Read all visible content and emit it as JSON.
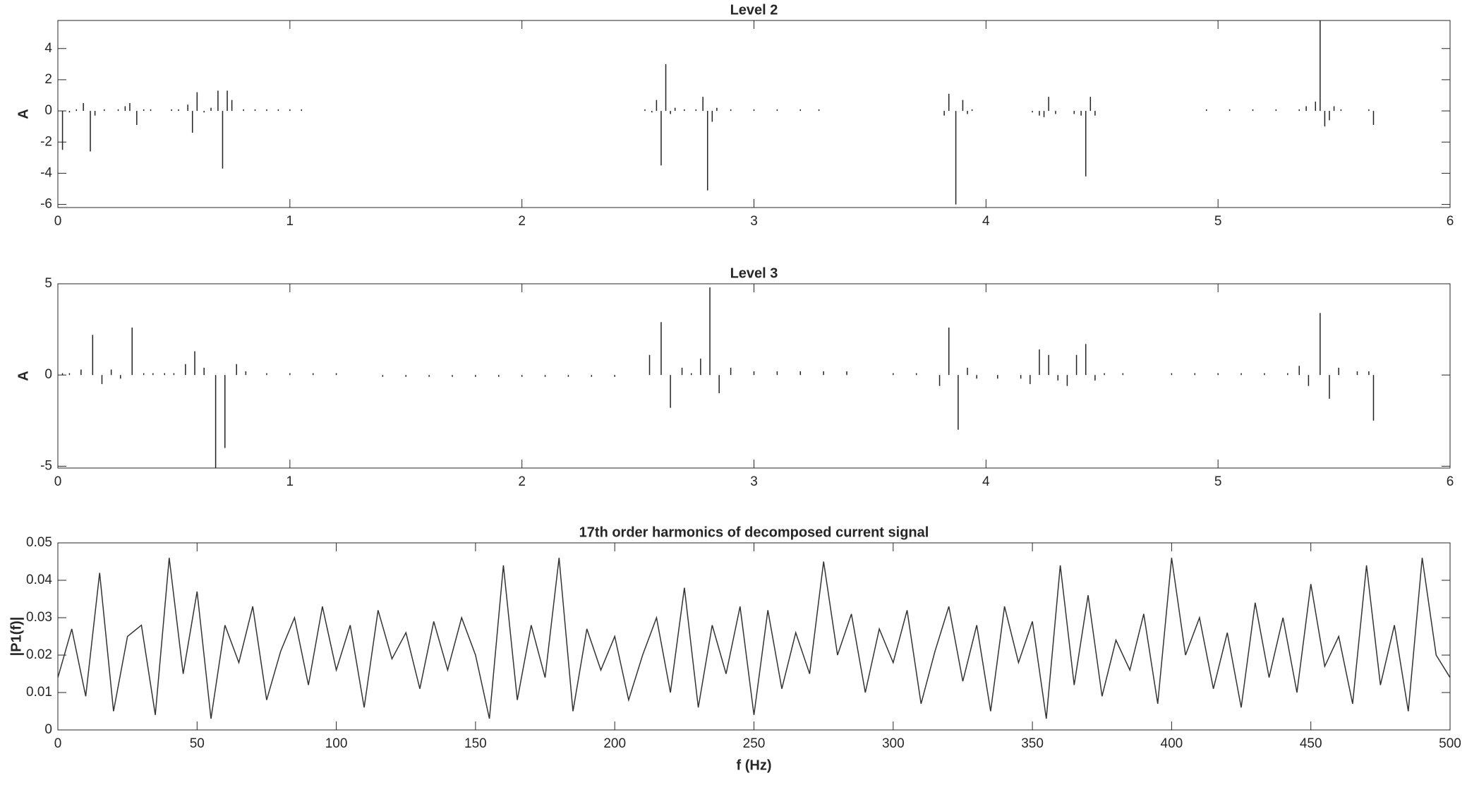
{
  "chart_data": [
    {
      "type": "stem",
      "title": "Level 2",
      "ylabel": "A",
      "color": "#222222",
      "x": [
        0.02,
        0.05,
        0.08,
        0.11,
        0.14,
        0.16,
        0.2,
        0.26,
        0.29,
        0.31,
        0.34,
        0.37,
        0.4,
        0.49,
        0.52,
        0.56,
        0.58,
        0.6,
        0.63,
        0.66,
        0.69,
        0.71,
        0.73,
        0.75,
        0.8,
        0.85,
        0.9,
        0.95,
        1.0,
        1.05,
        2.53,
        2.56,
        2.58,
        2.6,
        2.62,
        2.64,
        2.66,
        2.7,
        2.75,
        2.78,
        2.8,
        2.82,
        2.84,
        2.9,
        3.0,
        3.1,
        3.2,
        3.28,
        3.82,
        3.84,
        3.87,
        3.9,
        3.92,
        3.94,
        4.2,
        4.23,
        4.25,
        4.27,
        4.3,
        4.38,
        4.41,
        4.43,
        4.45,
        4.47,
        4.95,
        5.05,
        5.15,
        5.25,
        5.35,
        5.38,
        5.42,
        5.44,
        5.46,
        5.48,
        5.5,
        5.53,
        5.65,
        5.67
      ],
      "values": [
        -2.5,
        -0.1,
        0.1,
        0.5,
        -2.6,
        -0.3,
        0.1,
        0.1,
        0.3,
        0.5,
        -0.9,
        0.1,
        0.1,
        0.1,
        0.1,
        0.4,
        -1.4,
        1.2,
        -0.1,
        0.2,
        1.3,
        -3.7,
        1.3,
        0.7,
        0.1,
        0.1,
        0.1,
        0.1,
        0.1,
        0.1,
        0.1,
        -0.1,
        0.7,
        -3.5,
        3.0,
        -0.2,
        0.2,
        0.1,
        0.1,
        0.9,
        -5.1,
        -0.7,
        0.2,
        0.1,
        0.1,
        0.1,
        0.1,
        0.1,
        -0.3,
        1.1,
        -6.0,
        0.7,
        -0.2,
        0.1,
        -0.1,
        -0.3,
        -0.4,
        0.9,
        -0.2,
        -0.2,
        -0.3,
        -4.2,
        0.9,
        -0.3,
        0.1,
        0.1,
        0.1,
        0.1,
        0.1,
        0.3,
        0.6,
        5.8,
        -1.0,
        -0.6,
        0.3,
        0.1,
        0.1,
        -0.9
      ],
      "xlim": [
        0,
        6
      ],
      "xticks": [
        0,
        1,
        2,
        3,
        4,
        5,
        6
      ],
      "ylim": [
        -6.2,
        5.8
      ],
      "yticks": [
        -6,
        -4,
        -2,
        0,
        2,
        4
      ]
    },
    {
      "type": "stem",
      "title": "Level 3",
      "ylabel": "A",
      "color": "#222222",
      "x": [
        0.02,
        0.05,
        0.1,
        0.15,
        0.19,
        0.23,
        0.27,
        0.32,
        0.37,
        0.41,
        0.46,
        0.5,
        0.55,
        0.59,
        0.63,
        0.68,
        0.72,
        0.77,
        0.81,
        0.9,
        1.0,
        1.1,
        1.2,
        1.4,
        1.5,
        1.6,
        1.7,
        1.8,
        1.9,
        2.0,
        2.1,
        2.2,
        2.3,
        2.4,
        2.55,
        2.6,
        2.64,
        2.69,
        2.73,
        2.77,
        2.81,
        2.85,
        2.9,
        3.0,
        3.1,
        3.2,
        3.3,
        3.4,
        3.6,
        3.7,
        3.8,
        3.84,
        3.88,
        3.92,
        3.96,
        4.05,
        4.15,
        4.19,
        4.23,
        4.27,
        4.31,
        4.35,
        4.39,
        4.43,
        4.47,
        4.51,
        4.59,
        4.8,
        4.9,
        5.0,
        5.1,
        5.2,
        5.3,
        5.35,
        5.39,
        5.44,
        5.48,
        5.52,
        5.6,
        5.65,
        5.67
      ],
      "values": [
        0.1,
        0.1,
        0.3,
        2.2,
        -0.5,
        0.3,
        -0.2,
        2.6,
        0.1,
        0.1,
        0.1,
        0.1,
        0.6,
        1.3,
        0.4,
        -5.1,
        -4.0,
        0.6,
        0.2,
        0.1,
        0.1,
        0.1,
        0.1,
        -0.1,
        -0.1,
        -0.1,
        -0.1,
        -0.1,
        -0.1,
        -0.1,
        -0.1,
        -0.1,
        -0.1,
        -0.1,
        1.1,
        2.9,
        -1.8,
        0.4,
        0.1,
        0.9,
        4.8,
        -1.0,
        0.4,
        0.2,
        0.2,
        0.2,
        0.2,
        0.2,
        0.1,
        0.1,
        -0.6,
        2.6,
        -3.0,
        0.4,
        -0.2,
        -0.2,
        -0.2,
        -0.5,
        1.4,
        1.1,
        -0.3,
        -0.6,
        1.1,
        1.7,
        -0.3,
        0.1,
        0.1,
        0.1,
        0.1,
        0.1,
        0.1,
        0.1,
        0.1,
        0.5,
        -0.6,
        3.4,
        -1.3,
        0.4,
        0.2,
        0.2,
        -2.5
      ],
      "xlim": [
        0,
        6
      ],
      "xticks": [
        0,
        1,
        2,
        3,
        4,
        5,
        6
      ],
      "ylim": [
        -5.1,
        5
      ],
      "yticks": [
        -5,
        0,
        5
      ]
    },
    {
      "type": "line",
      "title": "17th order harmonics of decomposed current signal",
      "xlabel": "f (Hz)",
      "ylabel": "|P1(f)|",
      "color": "#333333",
      "x": [
        0,
        5,
        10,
        15,
        20,
        25,
        30,
        35,
        40,
        45,
        50,
        55,
        60,
        65,
        70,
        75,
        80,
        85,
        90,
        95,
        100,
        105,
        110,
        115,
        120,
        125,
        130,
        135,
        140,
        145,
        150,
        155,
        160,
        165,
        170,
        175,
        180,
        185,
        190,
        195,
        200,
        205,
        210,
        215,
        220,
        225,
        230,
        235,
        240,
        245,
        250,
        255,
        260,
        265,
        270,
        275,
        280,
        285,
        290,
        295,
        300,
        305,
        310,
        315,
        320,
        325,
        330,
        335,
        340,
        345,
        350,
        355,
        360,
        365,
        370,
        375,
        380,
        385,
        390,
        395,
        400,
        405,
        410,
        415,
        420,
        425,
        430,
        435,
        440,
        445,
        450,
        455,
        460,
        465,
        470,
        475,
        480,
        485,
        490,
        495,
        500
      ],
      "values": [
        0.014,
        0.027,
        0.009,
        0.042,
        0.005,
        0.025,
        0.028,
        0.004,
        0.046,
        0.015,
        0.037,
        0.003,
        0.028,
        0.018,
        0.033,
        0.008,
        0.021,
        0.03,
        0.012,
        0.033,
        0.016,
        0.028,
        0.006,
        0.032,
        0.019,
        0.026,
        0.011,
        0.029,
        0.016,
        0.03,
        0.02,
        0.003,
        0.044,
        0.008,
        0.028,
        0.014,
        0.046,
        0.005,
        0.027,
        0.016,
        0.025,
        0.008,
        0.02,
        0.03,
        0.01,
        0.038,
        0.006,
        0.028,
        0.015,
        0.033,
        0.004,
        0.032,
        0.011,
        0.026,
        0.015,
        0.045,
        0.02,
        0.031,
        0.01,
        0.027,
        0.018,
        0.032,
        0.007,
        0.021,
        0.033,
        0.013,
        0.028,
        0.005,
        0.033,
        0.018,
        0.029,
        0.003,
        0.044,
        0.012,
        0.036,
        0.009,
        0.024,
        0.016,
        0.031,
        0.007,
        0.046,
        0.02,
        0.03,
        0.011,
        0.026,
        0.006,
        0.034,
        0.014,
        0.03,
        0.01,
        0.039,
        0.017,
        0.025,
        0.007,
        0.044,
        0.012,
        0.028,
        0.005,
        0.046,
        0.02,
        0.014
      ],
      "xlim": [
        0,
        500
      ],
      "xticks": [
        0,
        50,
        100,
        150,
        200,
        250,
        300,
        350,
        400,
        450,
        500
      ],
      "ylim": [
        0,
        0.05
      ],
      "yticks": [
        0,
        0.01,
        0.02,
        0.03,
        0.04,
        0.05
      ]
    }
  ]
}
